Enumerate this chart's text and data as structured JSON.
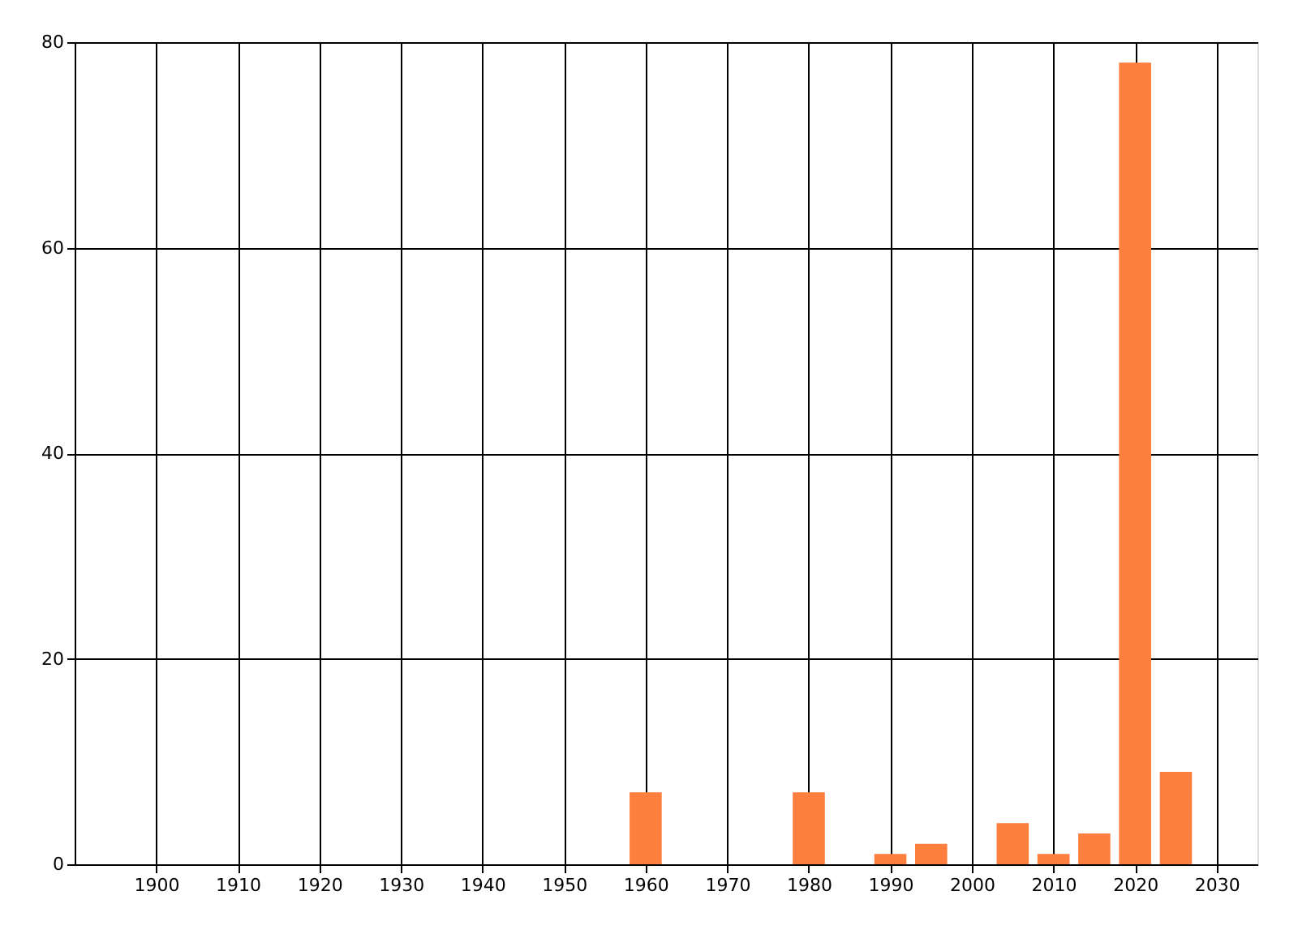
{
  "chart_data": {
    "type": "bar",
    "x": [
      1960,
      1980,
      1990,
      1995,
      2005,
      2010,
      2015,
      2020,
      2025
    ],
    "values": [
      7,
      7,
      1,
      2,
      4,
      1,
      3,
      78,
      9
    ],
    "color": "#ff7f3f",
    "xlim": [
      1890,
      2035
    ],
    "xticks": [
      1900,
      1910,
      1920,
      1930,
      1940,
      1950,
      1960,
      1970,
      1980,
      1990,
      2000,
      2010,
      2020,
      2030
    ],
    "ylim": [
      0,
      80
    ],
    "yticks": [
      0,
      20,
      40,
      60,
      80
    ],
    "grid": true
  }
}
